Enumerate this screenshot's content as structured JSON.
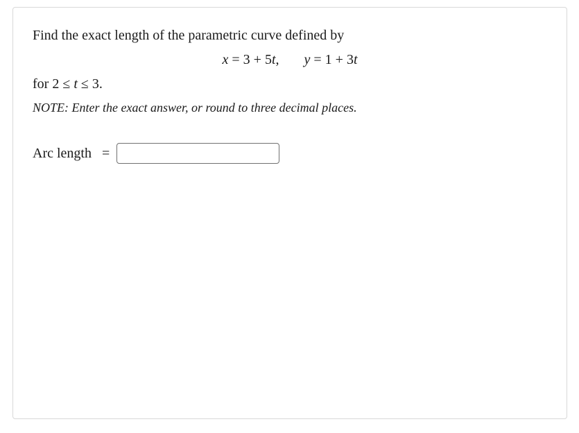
{
  "problem": {
    "prompt_line": "Find the exact length of the parametric curve defined by",
    "equation1_lhs": "x",
    "equation1_rhs_const": "3",
    "equation1_rhs_coeff": "5",
    "equation1_rhs_var": "t",
    "equation2_lhs": "y",
    "equation2_rhs_const": "1",
    "equation2_rhs_coeff": "3",
    "equation2_rhs_var": "t",
    "range_prefix": "for ",
    "range_low": "2",
    "range_var": "t",
    "range_high": "3",
    "range_period": ".",
    "note": "NOTE: Enter the exact answer, or round to three decimal places.",
    "answer_label": "Arc length",
    "answer_value": ""
  },
  "style": {
    "border_color": "#d8d8d8",
    "input_border_color": "#707070",
    "text_color": "#1a1a1a",
    "background_color": "#ffffff",
    "body_fontsize": 20,
    "note_fontsize": 18,
    "font_family": "Georgia, Times New Roman, serif"
  }
}
